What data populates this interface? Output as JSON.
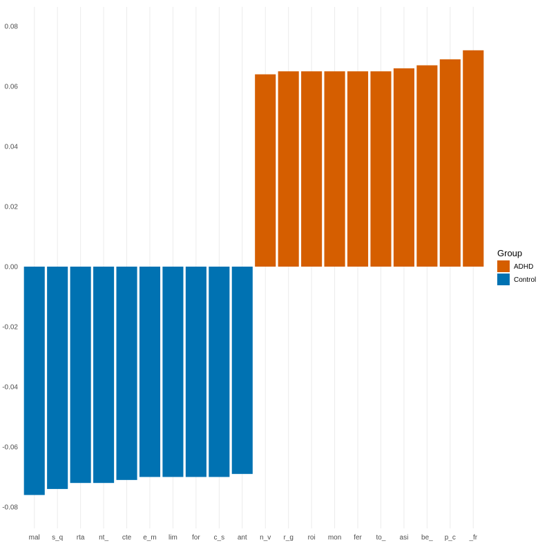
{
  "chart_data": {
    "type": "bar",
    "title": "",
    "xlabel": "",
    "ylabel": "",
    "ylim": [
      -0.08,
      0.08
    ],
    "y_ticks": [
      -0.08,
      -0.06,
      -0.04,
      -0.02,
      0.0,
      0.02,
      0.04,
      0.06,
      0.08
    ],
    "y_tick_labels": [
      "-0.08",
      "-0.06",
      "-0.04",
      "-0.02",
      "0.00",
      "0.02",
      "0.04",
      "0.06",
      "0.08"
    ],
    "grid": true,
    "legend": {
      "title": "Group",
      "position": "right",
      "entries": [
        {
          "name": "ADHD",
          "color": "#D55E00"
        },
        {
          "name": "Control",
          "color": "#0072B2"
        }
      ]
    },
    "categories": [
      "mal",
      "s_q",
      "rta",
      "nt_",
      "cte",
      "e_m",
      "lim",
      "for",
      "c_s",
      "ant",
      "n_v",
      "r_g",
      "roi",
      "mon",
      "fer",
      "to_",
      "asi",
      "be_",
      "p_c",
      "_fr"
    ],
    "values": [
      -0.076,
      -0.074,
      -0.072,
      -0.072,
      -0.071,
      -0.07,
      -0.07,
      -0.07,
      -0.07,
      -0.069,
      0.064,
      0.065,
      0.065,
      0.065,
      0.065,
      0.065,
      0.066,
      0.067,
      0.069,
      0.072
    ],
    "groups": [
      "Control",
      "Control",
      "Control",
      "Control",
      "Control",
      "Control",
      "Control",
      "Control",
      "Control",
      "Control",
      "ADHD",
      "ADHD",
      "ADHD",
      "ADHD",
      "ADHD",
      "ADHD",
      "ADHD",
      "ADHD",
      "ADHD",
      "ADHD"
    ]
  }
}
